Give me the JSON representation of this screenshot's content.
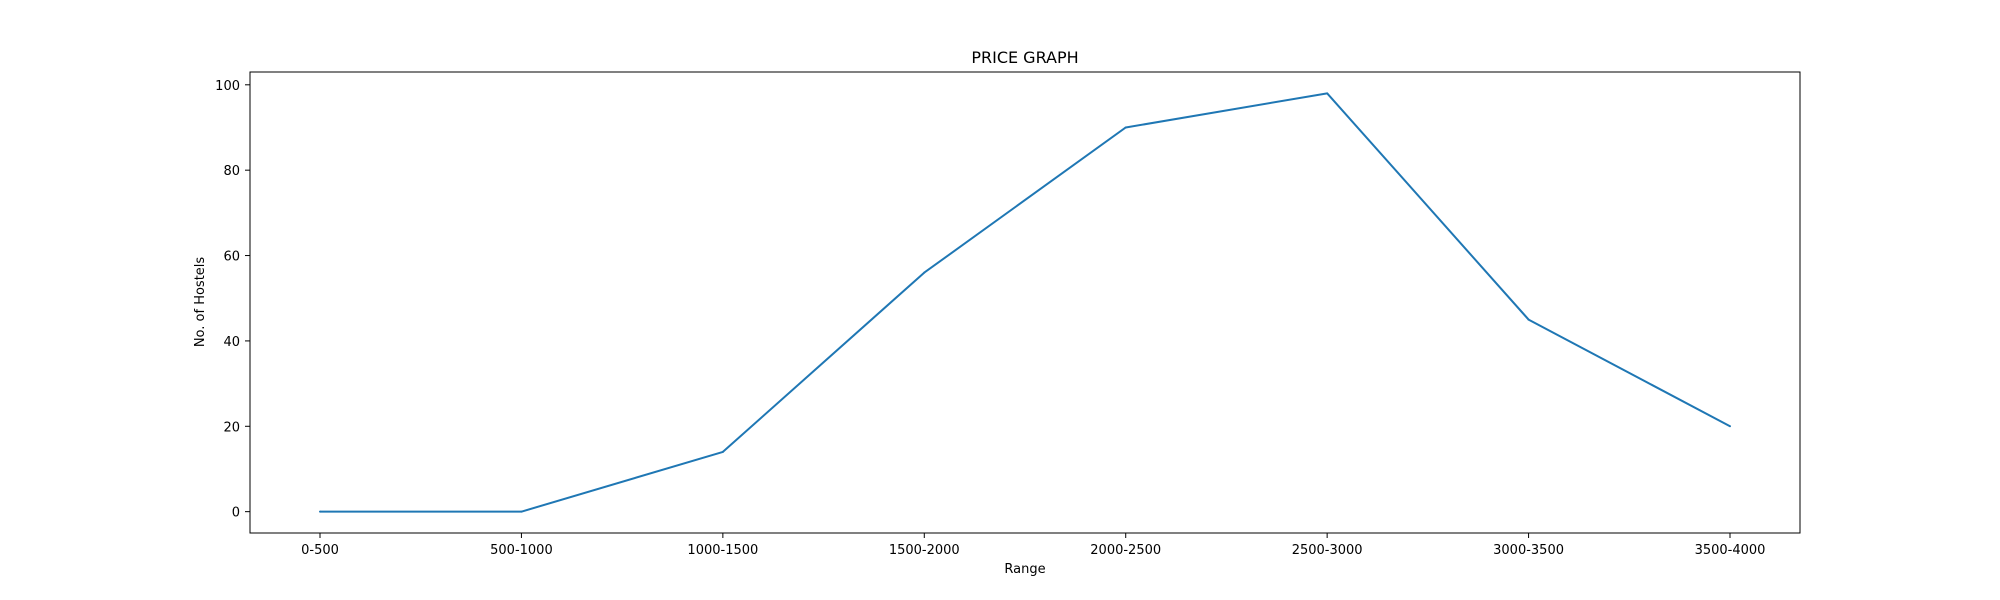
{
  "chart_data": {
    "type": "line",
    "title": "PRICE GRAPH",
    "xlabel": "Range",
    "ylabel": "No. of Hostels",
    "categories": [
      "0-500",
      "500-1000",
      "1000-1500",
      "1500-2000",
      "2000-2500",
      "2500-3000",
      "3000-3500",
      "3500-4000"
    ],
    "series": [
      {
        "values": [
          0,
          0,
          14,
          56,
          90,
          98,
          45,
          20
        ]
      }
    ],
    "ylim": [
      -5,
      103
    ],
    "yticks": [
      0,
      20,
      40,
      60,
      80,
      100
    ],
    "grid": false,
    "line_color": "#1f77b4"
  }
}
